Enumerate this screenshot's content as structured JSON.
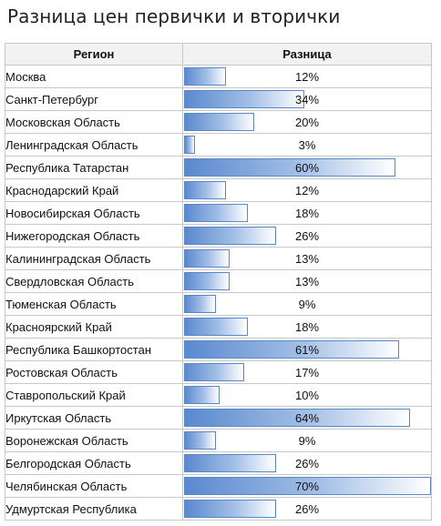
{
  "title": "Разница цен первички и вторички",
  "chart_data": {
    "type": "table",
    "columns": [
      "Регион",
      "Разница"
    ],
    "bar_color": "#5a89cf",
    "max_value": 70,
    "rows": [
      {
        "region": "Москва",
        "value": 12,
        "label": "12%"
      },
      {
        "region": "Санкт-Петербург",
        "value": 34,
        "label": "34%"
      },
      {
        "region": "Московская Область",
        "value": 20,
        "label": "20%"
      },
      {
        "region": "Ленинградская Область",
        "value": 3,
        "label": "3%"
      },
      {
        "region": "Республика Татарстан",
        "value": 60,
        "label": "60%"
      },
      {
        "region": "Краснодарский Край",
        "value": 12,
        "label": "12%"
      },
      {
        "region": "Новосибирская Область",
        "value": 18,
        "label": "18%"
      },
      {
        "region": "Нижегородская Область",
        "value": 26,
        "label": "26%"
      },
      {
        "region": "Калининградская Область",
        "value": 13,
        "label": "13%"
      },
      {
        "region": "Свердловская Область",
        "value": 13,
        "label": "13%"
      },
      {
        "region": "Тюменская Область",
        "value": 9,
        "label": "9%"
      },
      {
        "region": "Красноярский Край",
        "value": 18,
        "label": "18%"
      },
      {
        "region": "Республика Башкортостан",
        "value": 61,
        "label": "61%"
      },
      {
        "region": "Ростовская Область",
        "value": 17,
        "label": "17%"
      },
      {
        "region": "Ставропольский Край",
        "value": 10,
        "label": "10%"
      },
      {
        "region": "Иркутская Область",
        "value": 64,
        "label": "64%"
      },
      {
        "region": "Воронежская Область",
        "value": 9,
        "label": "9%"
      },
      {
        "region": "Белгородская Область",
        "value": 26,
        "label": "26%"
      },
      {
        "region": "Челябинская Область",
        "value": 70,
        "label": "70%"
      },
      {
        "region": "Удмуртская Республика",
        "value": 26,
        "label": "26%"
      }
    ]
  }
}
